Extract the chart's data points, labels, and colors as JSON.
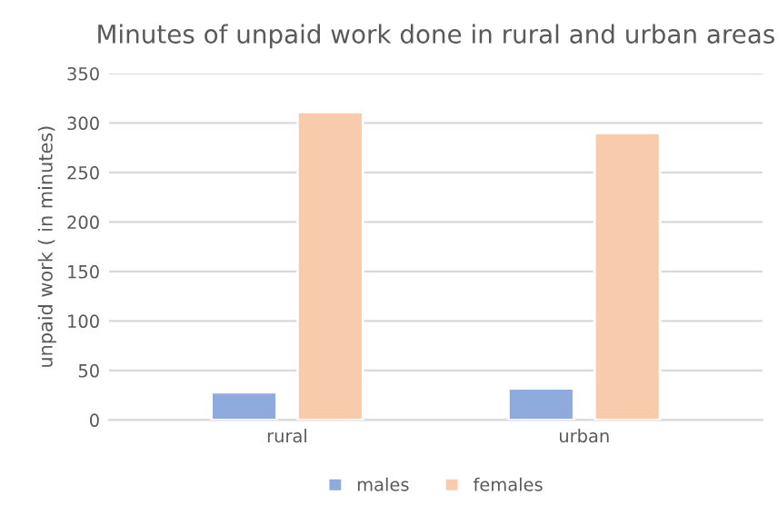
{
  "chart_data": {
    "type": "bar",
    "title": "Minutes of unpaid work done in rural and urban areas",
    "ylabel": "unpaid work ( in minutes)",
    "categories": [
      "rural",
      "urban"
    ],
    "series": [
      {
        "name": "males",
        "color": "#8faadc",
        "values": [
          28,
          32
        ]
      },
      {
        "name": "females",
        "color": "#f8cbad",
        "values": [
          311,
          290
        ]
      }
    ],
    "ylim": [
      0,
      350
    ],
    "yticks": [
      0,
      50,
      100,
      150,
      200,
      250,
      300,
      350
    ],
    "grid": "y",
    "legend": "bottom"
  }
}
